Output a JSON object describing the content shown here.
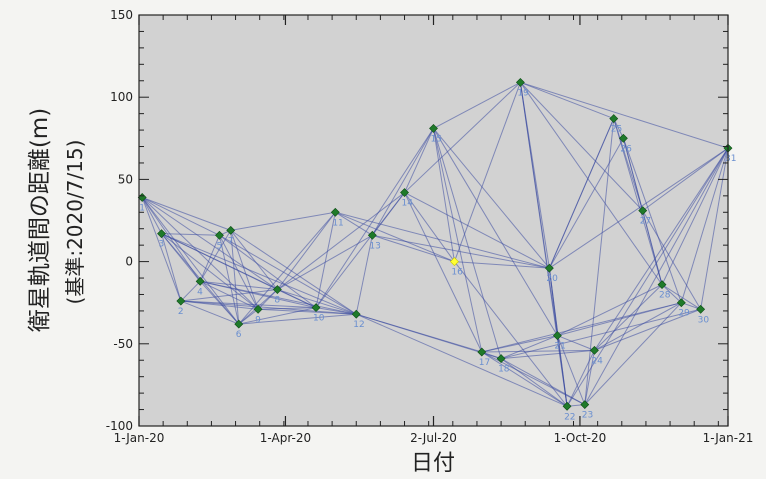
{
  "chart_data": {
    "type": "scatter",
    "title": "",
    "xlabel": "日付",
    "ylabel": "衛星軌道間の距離(m)",
    "ylabel_sub": "(基準:2020/7/15)",
    "x_tick_labels": [
      "1-Jan-20",
      "1-Apr-20",
      "2-Jul-20",
      "1-Oct-20",
      "1-Jan-21"
    ],
    "x_tick_dates": [
      "2020-01-01",
      "2020-04-01",
      "2020-07-02",
      "2020-10-01",
      "2021-01-01"
    ],
    "y_ticks": [
      150,
      100,
      50,
      0,
      -50,
      -100
    ],
    "xlim": [
      "2020-01-01",
      "2021-01-01"
    ],
    "ylim": [
      -100,
      150
    ],
    "grid": false,
    "background": "#d2d2d2",
    "node_color": "#1f7a2a",
    "reference_color": "#ffff33",
    "edge_color": "#3a4aa0",
    "label_color": "#6a8fd0",
    "points": [
      {
        "id": "1",
        "date": "2020-01-03",
        "y": 39
      },
      {
        "id": "2",
        "date": "2020-01-27",
        "y": -24
      },
      {
        "id": "3",
        "date": "2020-01-15",
        "y": 17
      },
      {
        "id": "4",
        "date": "2020-02-08",
        "y": -12
      },
      {
        "id": "5",
        "date": "2020-02-20",
        "y": 16
      },
      {
        "id": "6",
        "date": "2020-03-03",
        "y": -38
      },
      {
        "id": "7",
        "date": "2020-02-27",
        "y": 19
      },
      {
        "id": "8",
        "date": "2020-03-27",
        "y": -17
      },
      {
        "id": "9",
        "date": "2020-03-15",
        "y": -29
      },
      {
        "id": "10",
        "date": "2020-04-20",
        "y": -28
      },
      {
        "id": "11",
        "date": "2020-05-02",
        "y": 30
      },
      {
        "id": "12",
        "date": "2020-05-15",
        "y": -32
      },
      {
        "id": "13",
        "date": "2020-05-25",
        "y": 16
      },
      {
        "id": "14",
        "date": "2020-06-14",
        "y": 42
      },
      {
        "id": "15",
        "date": "2020-07-02",
        "y": 81
      },
      {
        "id": "16",
        "date": "2020-07-15",
        "y": 0,
        "reference": true
      },
      {
        "id": "17",
        "date": "2020-08-01",
        "y": -55
      },
      {
        "id": "18",
        "date": "2020-08-13",
        "y": -59
      },
      {
        "id": "19",
        "date": "2020-08-25",
        "y": 109
      },
      {
        "id": "20",
        "date": "2020-09-12",
        "y": -4
      },
      {
        "id": "21",
        "date": "2020-09-17",
        "y": -45
      },
      {
        "id": "22",
        "date": "2020-09-23",
        "y": -88
      },
      {
        "id": "23",
        "date": "2020-10-04",
        "y": -87
      },
      {
        "id": "24",
        "date": "2020-10-10",
        "y": -54
      },
      {
        "id": "25",
        "date": "2020-10-22",
        "y": 87
      },
      {
        "id": "26",
        "date": "2020-10-28",
        "y": 75
      },
      {
        "id": "27",
        "date": "2020-11-09",
        "y": 31
      },
      {
        "id": "28",
        "date": "2020-11-21",
        "y": -14
      },
      {
        "id": "29",
        "date": "2020-12-03",
        "y": -25
      },
      {
        "id": "30",
        "date": "2020-12-15",
        "y": -29
      },
      {
        "id": "31",
        "date": "2021-01-01",
        "y": 69
      }
    ],
    "pairs": [
      [
        "1",
        "2"
      ],
      [
        "1",
        "3"
      ],
      [
        "1",
        "4"
      ],
      [
        "1",
        "5"
      ],
      [
        "1",
        "6"
      ],
      [
        "1",
        "7"
      ],
      [
        "1",
        "8"
      ],
      [
        "1",
        "9"
      ],
      [
        "3",
        "2"
      ],
      [
        "3",
        "4"
      ],
      [
        "3",
        "5"
      ],
      [
        "3",
        "6"
      ],
      [
        "3",
        "8"
      ],
      [
        "3",
        "9"
      ],
      [
        "3",
        "10"
      ],
      [
        "3",
        "12"
      ],
      [
        "2",
        "4"
      ],
      [
        "2",
        "6"
      ],
      [
        "2",
        "8"
      ],
      [
        "2",
        "9"
      ],
      [
        "2",
        "10"
      ],
      [
        "2",
        "12"
      ],
      [
        "4",
        "5"
      ],
      [
        "4",
        "6"
      ],
      [
        "4",
        "7"
      ],
      [
        "4",
        "8"
      ],
      [
        "4",
        "9"
      ],
      [
        "4",
        "10"
      ],
      [
        "4",
        "12"
      ],
      [
        "5",
        "6"
      ],
      [
        "5",
        "7"
      ],
      [
        "5",
        "9"
      ],
      [
        "5",
        "10"
      ],
      [
        "5",
        "12"
      ],
      [
        "7",
        "6"
      ],
      [
        "7",
        "9"
      ],
      [
        "7",
        "8"
      ],
      [
        "7",
        "11"
      ],
      [
        "7",
        "12"
      ],
      [
        "6",
        "8"
      ],
      [
        "6",
        "9"
      ],
      [
        "6",
        "10"
      ],
      [
        "6",
        "12"
      ],
      [
        "6",
        "11"
      ],
      [
        "9",
        "8"
      ],
      [
        "9",
        "10"
      ],
      [
        "9",
        "12"
      ],
      [
        "8",
        "10"
      ],
      [
        "8",
        "11"
      ],
      [
        "8",
        "12"
      ],
      [
        "8",
        "14"
      ],
      [
        "8",
        "13"
      ],
      [
        "10",
        "11"
      ],
      [
        "10",
        "12"
      ],
      [
        "10",
        "15"
      ],
      [
        "10",
        "14"
      ],
      [
        "11",
        "13"
      ],
      [
        "11",
        "16"
      ],
      [
        "11",
        "20"
      ],
      [
        "12",
        "13"
      ],
      [
        "12",
        "17"
      ],
      [
        "12",
        "18"
      ],
      [
        "12",
        "22"
      ],
      [
        "13",
        "14"
      ],
      [
        "13",
        "15"
      ],
      [
        "13",
        "16"
      ],
      [
        "13",
        "20"
      ],
      [
        "14",
        "15"
      ],
      [
        "14",
        "16"
      ],
      [
        "14",
        "17"
      ],
      [
        "14",
        "19"
      ],
      [
        "14",
        "20"
      ],
      [
        "15",
        "16"
      ],
      [
        "15",
        "17"
      ],
      [
        "15",
        "18"
      ],
      [
        "15",
        "19"
      ],
      [
        "15",
        "20"
      ],
      [
        "15",
        "21"
      ],
      [
        "16",
        "20"
      ],
      [
        "16",
        "19"
      ],
      [
        "16",
        "22"
      ],
      [
        "17",
        "18"
      ],
      [
        "17",
        "21"
      ],
      [
        "17",
        "22"
      ],
      [
        "17",
        "23"
      ],
      [
        "17",
        "24"
      ],
      [
        "17",
        "29"
      ],
      [
        "18",
        "21"
      ],
      [
        "18",
        "22"
      ],
      [
        "18",
        "23"
      ],
      [
        "18",
        "24"
      ],
      [
        "18",
        "30"
      ],
      [
        "19",
        "20"
      ],
      [
        "19",
        "21"
      ],
      [
        "19",
        "22"
      ],
      [
        "19",
        "25"
      ],
      [
        "19",
        "27"
      ],
      [
        "19",
        "28"
      ],
      [
        "19",
        "31"
      ],
      [
        "20",
        "21"
      ],
      [
        "20",
        "22"
      ],
      [
        "20",
        "25"
      ],
      [
        "20",
        "26"
      ],
      [
        "20",
        "31"
      ],
      [
        "21",
        "22"
      ],
      [
        "21",
        "23"
      ],
      [
        "21",
        "24"
      ],
      [
        "21",
        "28"
      ],
      [
        "21",
        "29"
      ],
      [
        "22",
        "23"
      ],
      [
        "22",
        "24"
      ],
      [
        "22",
        "20"
      ],
      [
        "23",
        "24"
      ],
      [
        "23",
        "25"
      ],
      [
        "23",
        "31"
      ],
      [
        "23",
        "29"
      ],
      [
        "24",
        "29"
      ],
      [
        "24",
        "30"
      ],
      [
        "24",
        "28"
      ],
      [
        "25",
        "26"
      ],
      [
        "25",
        "27"
      ],
      [
        "25",
        "28"
      ],
      [
        "25",
        "20"
      ],
      [
        "26",
        "27"
      ],
      [
        "26",
        "28"
      ],
      [
        "26",
        "29"
      ],
      [
        "27",
        "28"
      ],
      [
        "27",
        "30"
      ],
      [
        "27",
        "31"
      ],
      [
        "28",
        "29"
      ],
      [
        "28",
        "30"
      ],
      [
        "28",
        "31"
      ],
      [
        "29",
        "30"
      ],
      [
        "29",
        "31"
      ],
      [
        "30",
        "31"
      ],
      [
        "24",
        "31"
      ],
      [
        "22",
        "31"
      ]
    ]
  }
}
